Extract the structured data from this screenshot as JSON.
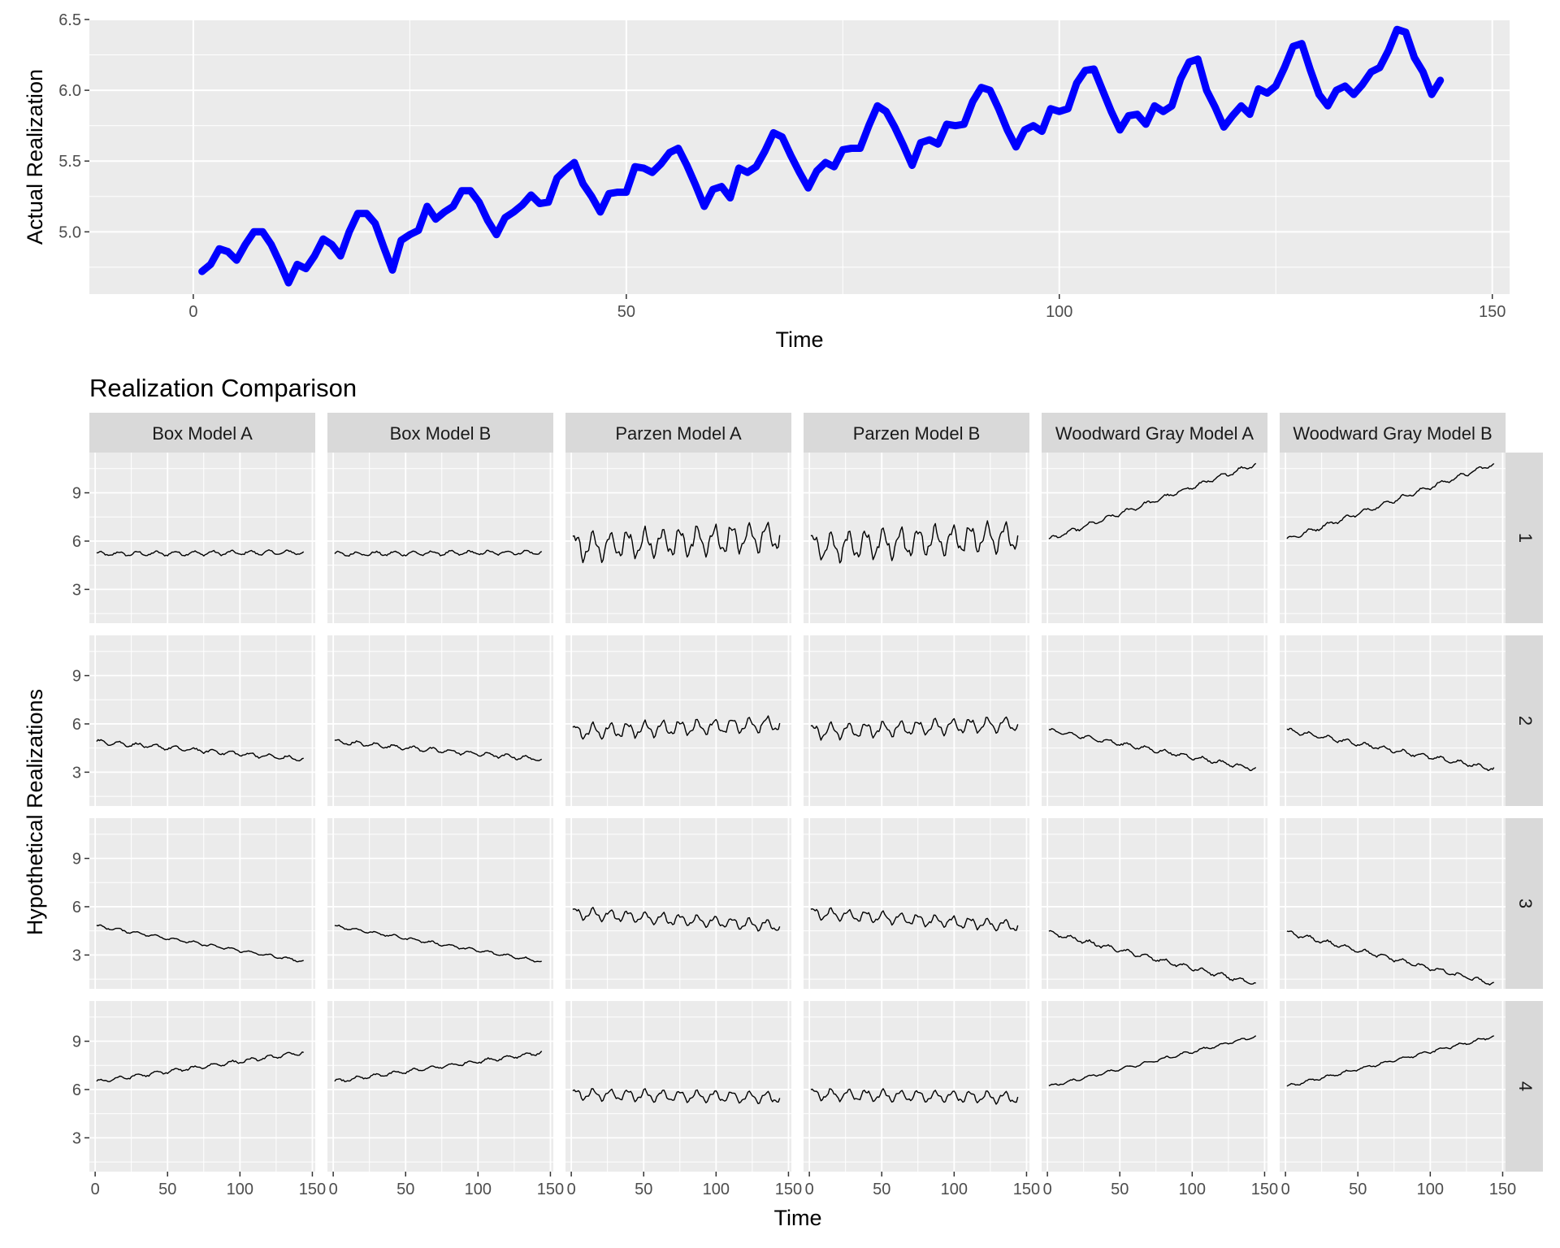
{
  "chart_data": [
    {
      "type": "line",
      "title": "",
      "xlabel": "Time",
      "ylabel": "Actual Realization",
      "xlim": [
        -12,
        152
      ],
      "ylim": [
        4.56,
        6.5
      ],
      "xticks": [
        0,
        50,
        100,
        150
      ],
      "yticks": [
        5.0,
        5.5,
        6.0,
        6.5
      ],
      "ytick_labels": [
        "5.0",
        "5.5",
        "6.0",
        "6.5"
      ],
      "grid": true,
      "line_color": "#0000ff",
      "series": [
        {
          "x": [
            1,
            2,
            3,
            4,
            5,
            6,
            7,
            8,
            9,
            10,
            11,
            12,
            13,
            14,
            15,
            16,
            17,
            18,
            19,
            20,
            21,
            22,
            23,
            24,
            25,
            26,
            27,
            28,
            29,
            30,
            31,
            32,
            33,
            34,
            35,
            36,
            37,
            38,
            39,
            40,
            41,
            42,
            43,
            44,
            45,
            46,
            47,
            48,
            49,
            50,
            51,
            52,
            53,
            54,
            55,
            56,
            57,
            58,
            59,
            60,
            61,
            62,
            63,
            64,
            65,
            66,
            67,
            68,
            69,
            70,
            71,
            72,
            73,
            74,
            75,
            76,
            77,
            78,
            79,
            80,
            81,
            82,
            83,
            84,
            85,
            86,
            87,
            88,
            89,
            90,
            91,
            92,
            93,
            94,
            95,
            96,
            97,
            98,
            99,
            100,
            101,
            102,
            103,
            104,
            105,
            106,
            107,
            108,
            109,
            110,
            111,
            112,
            113,
            114,
            115,
            116,
            117,
            118,
            119,
            120,
            121,
            122,
            123,
            124,
            125,
            126,
            127,
            128,
            129,
            130,
            131,
            132,
            133,
            134,
            135,
            136,
            137,
            138,
            139,
            140,
            141,
            142,
            143,
            144
          ],
          "values": [
            4.72,
            4.77,
            4.88,
            4.86,
            4.8,
            4.91,
            5.0,
            5.0,
            4.91,
            4.78,
            4.64,
            4.77,
            4.74,
            4.83,
            4.95,
            4.91,
            4.83,
            5.0,
            5.13,
            5.13,
            5.06,
            4.89,
            4.73,
            4.94,
            4.98,
            5.01,
            5.18,
            5.09,
            5.14,
            5.18,
            5.29,
            5.29,
            5.21,
            5.08,
            4.98,
            5.1,
            5.14,
            5.19,
            5.26,
            5.2,
            5.21,
            5.38,
            5.44,
            5.49,
            5.34,
            5.25,
            5.14,
            5.27,
            5.28,
            5.28,
            5.46,
            5.45,
            5.42,
            5.48,
            5.56,
            5.59,
            5.47,
            5.33,
            5.18,
            5.3,
            5.32,
            5.24,
            5.45,
            5.42,
            5.46,
            5.57,
            5.7,
            5.67,
            5.54,
            5.42,
            5.31,
            5.43,
            5.49,
            5.46,
            5.58,
            5.59,
            5.59,
            5.75,
            5.89,
            5.85,
            5.74,
            5.61,
            5.47,
            5.63,
            5.65,
            5.62,
            5.76,
            5.75,
            5.76,
            5.92,
            6.02,
            6.0,
            5.87,
            5.72,
            5.6,
            5.72,
            5.75,
            5.71,
            5.87,
            5.85,
            5.87,
            6.05,
            6.14,
            6.15,
            6.0,
            5.85,
            5.72,
            5.82,
            5.83,
            5.76,
            5.89,
            5.85,
            5.89,
            6.08,
            6.2,
            6.22,
            6.0,
            5.88,
            5.74,
            5.82,
            5.89,
            5.83,
            6.01,
            5.98,
            6.03,
            6.16,
            6.31,
            6.33,
            6.14,
            5.97,
            5.89,
            6.0,
            6.03,
            5.97,
            6.04,
            6.13,
            6.16,
            6.28,
            6.43,
            6.41,
            6.23,
            6.13,
            5.97,
            6.07
          ]
        }
      ]
    },
    {
      "type": "line",
      "title": "Realization Comparison",
      "xlabel": "Time",
      "ylabel": "Hypothetical Realizations",
      "xlim": [
        -4,
        152
      ],
      "ylim": [
        0.9,
        11.5
      ],
      "xticks": [
        0,
        50,
        100,
        150
      ],
      "yticks": [
        3,
        6,
        9
      ],
      "grid": true,
      "line_color": "#000000",
      "columns": [
        "Box Model A",
        "Box Model B",
        "Parzen Model A",
        "Parzen Model B",
        "Woodward Gray Model A",
        "Woodward Gray Model B"
      ],
      "rows": [
        "1",
        "2",
        "3",
        "4"
      ],
      "panels": [
        {
          "row": "1",
          "column": "Box Model A",
          "start": 5.2,
          "end": 5.3,
          "amplitude": 0.12
        },
        {
          "row": "1",
          "column": "Box Model B",
          "start": 5.2,
          "end": 5.3,
          "amplitude": 0.12
        },
        {
          "row": "1",
          "column": "Parzen Model A",
          "start": 5.6,
          "end": 6.3,
          "amplitude": 0.75
        },
        {
          "row": "1",
          "column": "Parzen Model B",
          "start": 5.6,
          "end": 6.3,
          "amplitude": 0.75
        },
        {
          "row": "1",
          "column": "Woodward Gray Model A",
          "start": 6.1,
          "end": 10.8,
          "amplitude": 0.12
        },
        {
          "row": "1",
          "column": "Woodward Gray Model B",
          "start": 6.1,
          "end": 10.8,
          "amplitude": 0.12
        },
        {
          "row": "2",
          "column": "Box Model A",
          "start": 4.9,
          "end": 3.8,
          "amplitude": 0.12
        },
        {
          "row": "2",
          "column": "Box Model B",
          "start": 4.9,
          "end": 3.8,
          "amplitude": 0.12
        },
        {
          "row": "2",
          "column": "Parzen Model A",
          "start": 5.5,
          "end": 6.0,
          "amplitude": 0.4
        },
        {
          "row": "2",
          "column": "Parzen Model B",
          "start": 5.5,
          "end": 6.0,
          "amplitude": 0.4
        },
        {
          "row": "2",
          "column": "Woodward Gray Model A",
          "start": 5.6,
          "end": 3.2,
          "amplitude": 0.12
        },
        {
          "row": "2",
          "column": "Woodward Gray Model B",
          "start": 5.6,
          "end": 3.2,
          "amplitude": 0.12
        },
        {
          "row": "3",
          "column": "Box Model A",
          "start": 4.8,
          "end": 2.6,
          "amplitude": 0.08
        },
        {
          "row": "3",
          "column": "Box Model B",
          "start": 4.8,
          "end": 2.6,
          "amplitude": 0.08
        },
        {
          "row": "3",
          "column": "Parzen Model A",
          "start": 5.6,
          "end": 4.8,
          "amplitude": 0.3
        },
        {
          "row": "3",
          "column": "Parzen Model B",
          "start": 5.6,
          "end": 4.8,
          "amplitude": 0.3
        },
        {
          "row": "3",
          "column": "Woodward Gray Model A",
          "start": 4.4,
          "end": 1.2,
          "amplitude": 0.12
        },
        {
          "row": "3",
          "column": "Woodward Gray Model B",
          "start": 4.4,
          "end": 1.2,
          "amplitude": 0.12
        },
        {
          "row": "4",
          "column": "Box Model A",
          "start": 6.5,
          "end": 8.3,
          "amplitude": 0.1
        },
        {
          "row": "4",
          "column": "Box Model B",
          "start": 6.5,
          "end": 8.3,
          "amplitude": 0.1
        },
        {
          "row": "4",
          "column": "Parzen Model A",
          "start": 5.7,
          "end": 5.5,
          "amplitude": 0.3
        },
        {
          "row": "4",
          "column": "Parzen Model B",
          "start": 5.7,
          "end": 5.5,
          "amplitude": 0.3
        },
        {
          "row": "4",
          "column": "Woodward Gray Model A",
          "start": 6.2,
          "end": 9.3,
          "amplitude": 0.08
        },
        {
          "row": "4",
          "column": "Woodward Gray Model B",
          "start": 6.2,
          "end": 9.3,
          "amplitude": 0.08
        }
      ]
    }
  ]
}
